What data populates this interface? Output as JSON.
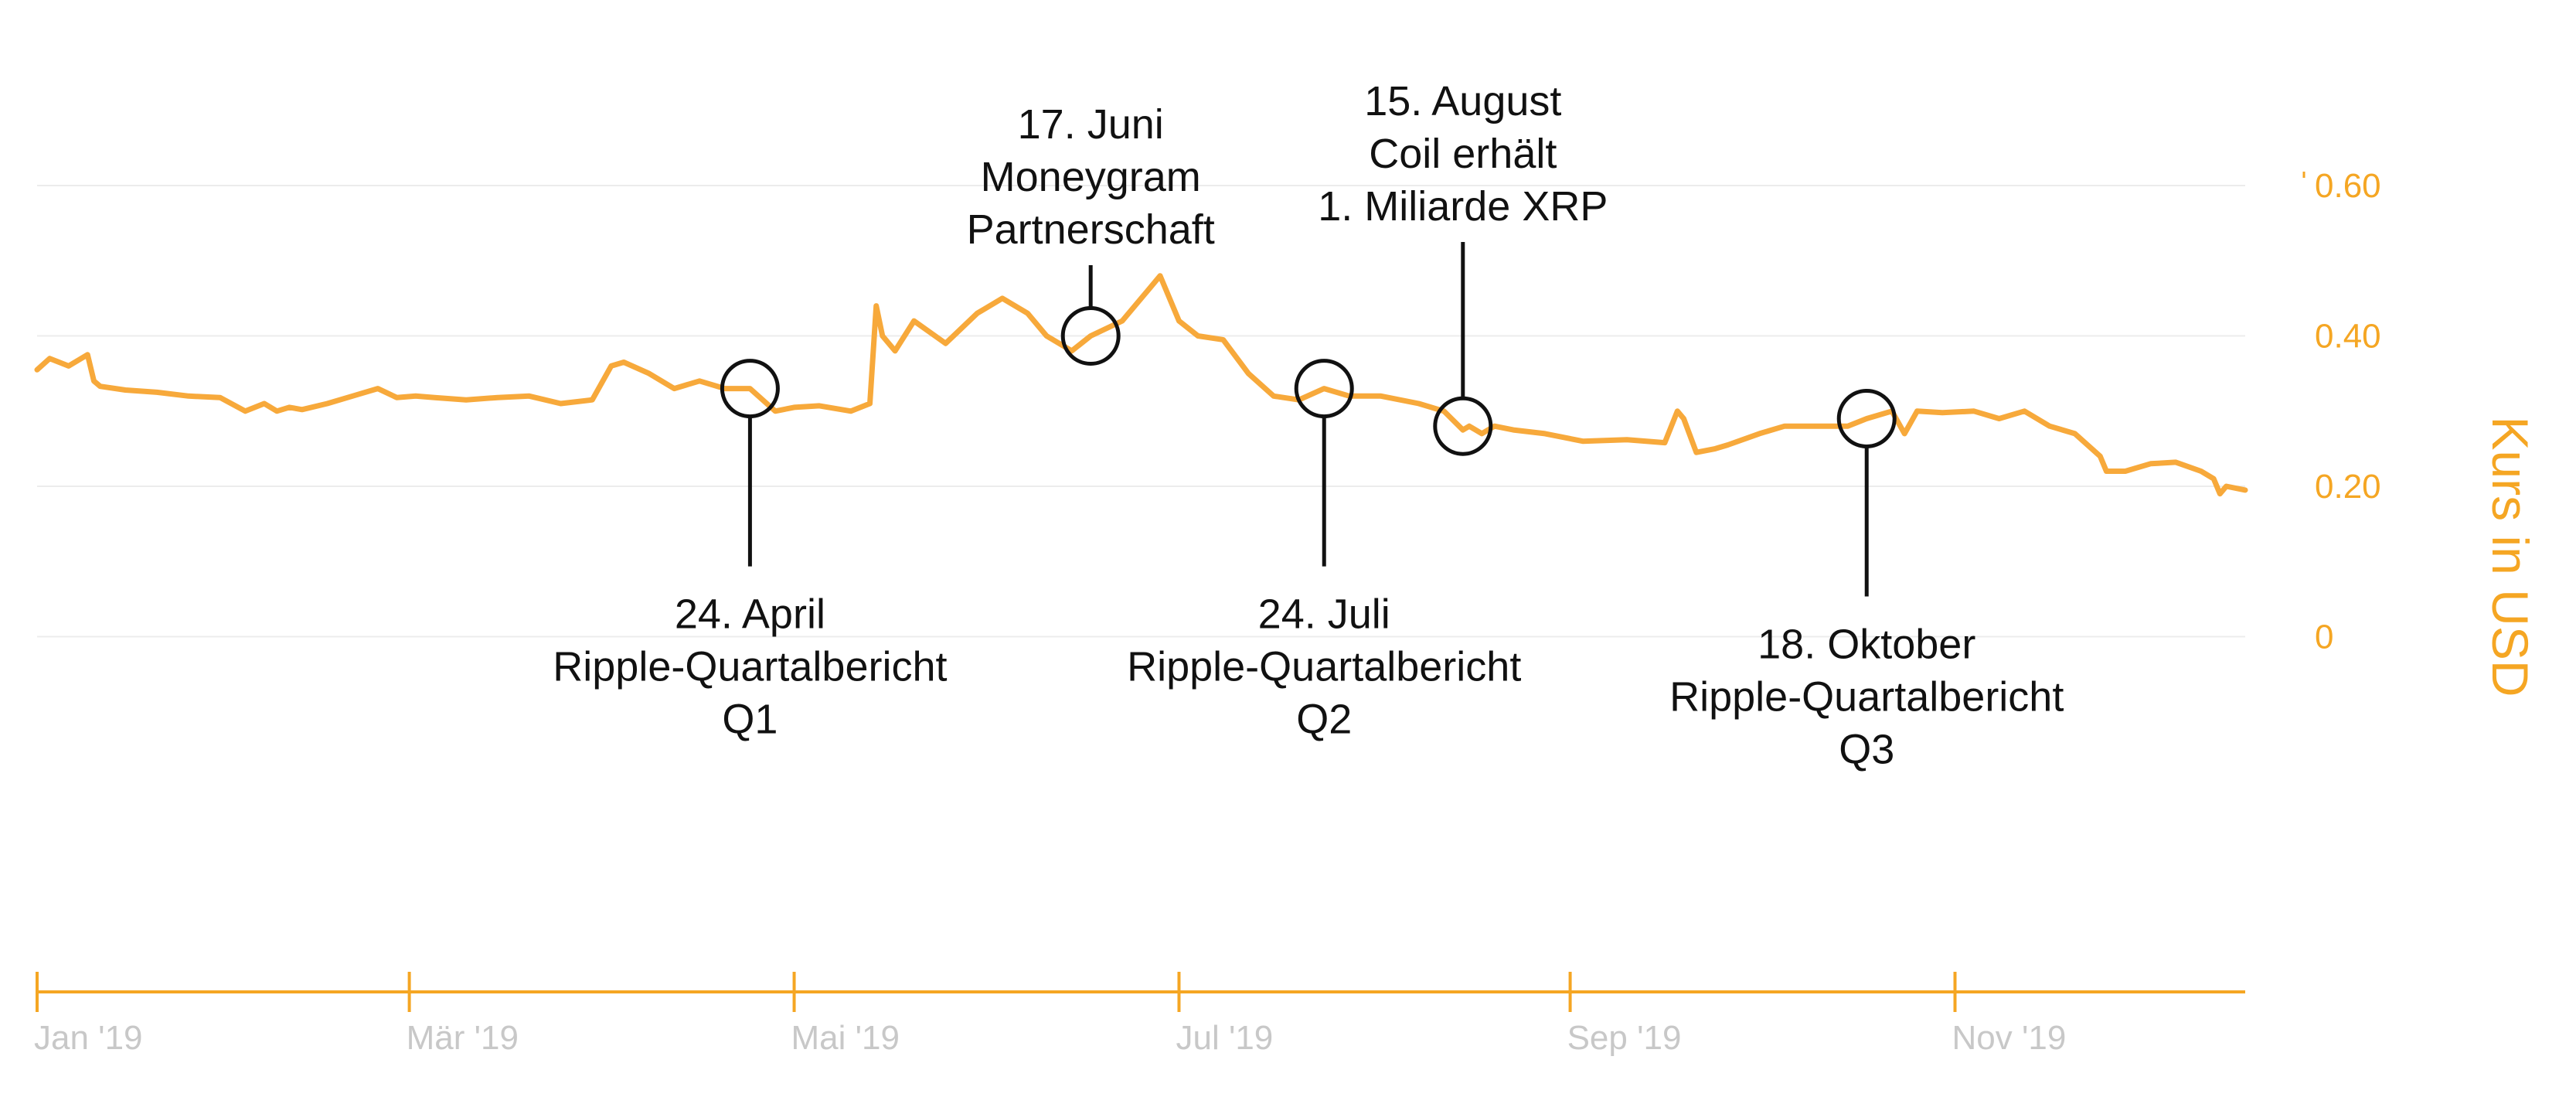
{
  "chart_data": {
    "type": "line",
    "title": "",
    "xlabel": "",
    "ylabel": "Kurs in USD",
    "ylim": [
      -0.2,
      0.6
    ],
    "y_ticks": [
      {
        "value": 0.6,
        "label": "0.60"
      },
      {
        "value": 0.4,
        "label": "0.40"
      },
      {
        "value": 0.2,
        "label": "0.20"
      },
      {
        "value": 0,
        "label": "0"
      }
    ],
    "x_ticks": [
      {
        "date": "2019-01-01",
        "label": "Jan '19"
      },
      {
        "date": "2019-03-01",
        "label": "Mär '19"
      },
      {
        "date": "2019-05-01",
        "label": "Mai '19"
      },
      {
        "date": "2019-07-01",
        "label": "Jul '19"
      },
      {
        "date": "2019-09-01",
        "label": "Sep '19"
      },
      {
        "date": "2019-11-01",
        "label": "Nov '19"
      }
    ],
    "xlim": [
      "2019-01-01",
      "2019-12-17"
    ],
    "grid": true,
    "line_color": "#f7a93b",
    "axis_color": "#f5a623",
    "series": [
      {
        "name": "",
        "x": [
          "2019-01-01",
          "2019-01-03",
          "2019-01-06",
          "2019-01-09",
          "2019-01-10",
          "2019-01-11",
          "2019-01-15",
          "2019-01-20",
          "2019-01-25",
          "2019-01-30",
          "2019-02-03",
          "2019-02-06",
          "2019-02-08",
          "2019-02-10",
          "2019-02-12",
          "2019-02-16",
          "2019-02-20",
          "2019-02-24",
          "2019-02-27",
          "2019-03-02",
          "2019-03-05",
          "2019-03-10",
          "2019-03-15",
          "2019-03-20",
          "2019-03-25",
          "2019-03-30",
          "2019-04-02",
          "2019-04-04",
          "2019-04-08",
          "2019-04-12",
          "2019-04-16",
          "2019-04-20",
          "2019-04-24",
          "2019-04-28",
          "2019-05-01",
          "2019-05-05",
          "2019-05-10",
          "2019-05-13",
          "2019-05-14",
          "2019-05-15",
          "2019-05-17",
          "2019-05-20",
          "2019-05-25",
          "2019-05-30",
          "2019-06-03",
          "2019-06-07",
          "2019-06-10",
          "2019-06-14",
          "2019-06-17",
          "2019-06-22",
          "2019-06-26",
          "2019-06-28",
          "2019-07-01",
          "2019-07-04",
          "2019-07-08",
          "2019-07-12",
          "2019-07-16",
          "2019-07-20",
          "2019-07-24",
          "2019-07-28",
          "2019-08-02",
          "2019-08-08",
          "2019-08-12",
          "2019-08-15",
          "2019-08-16",
          "2019-08-18",
          "2019-08-20",
          "2019-08-23",
          "2019-08-28",
          "2019-09-03",
          "2019-09-10",
          "2019-09-16",
          "2019-09-18",
          "2019-09-19",
          "2019-09-21",
          "2019-09-24",
          "2019-09-26",
          "2019-10-01",
          "2019-10-05",
          "2019-10-10",
          "2019-10-15",
          "2019-10-18",
          "2019-10-22",
          "2019-10-24",
          "2019-10-26",
          "2019-10-30",
          "2019-11-04",
          "2019-11-08",
          "2019-11-12",
          "2019-11-16",
          "2019-11-20",
          "2019-11-24",
          "2019-11-25",
          "2019-11-28",
          "2019-12-02",
          "2019-12-06",
          "2019-12-10",
          "2019-12-12",
          "2019-12-13",
          "2019-12-14",
          "2019-12-17"
        ],
        "values": [
          0.355,
          0.37,
          0.36,
          0.375,
          0.34,
          0.333,
          0.328,
          0.325,
          0.32,
          0.318,
          0.3,
          0.31,
          0.3,
          0.305,
          0.302,
          0.31,
          0.32,
          0.33,
          0.318,
          0.32,
          0.318,
          0.315,
          0.318,
          0.32,
          0.31,
          0.315,
          0.36,
          0.365,
          0.35,
          0.33,
          0.34,
          0.33,
          0.33,
          0.3,
          0.305,
          0.307,
          0.3,
          0.31,
          0.44,
          0.4,
          0.38,
          0.42,
          0.39,
          0.43,
          0.45,
          0.43,
          0.4,
          0.38,
          0.4,
          0.42,
          0.46,
          0.48,
          0.42,
          0.4,
          0.395,
          0.35,
          0.32,
          0.315,
          0.33,
          0.32,
          0.32,
          0.31,
          0.3,
          0.275,
          0.28,
          0.27,
          0.28,
          0.275,
          0.27,
          0.26,
          0.262,
          0.258,
          0.3,
          0.29,
          0.245,
          0.25,
          0.255,
          0.27,
          0.28,
          0.28,
          0.28,
          0.29,
          0.3,
          0.27,
          0.3,
          0.298,
          0.3,
          0.29,
          0.3,
          0.28,
          0.27,
          0.24,
          0.22,
          0.22,
          0.23,
          0.232,
          0.22,
          0.21,
          0.19,
          0.2,
          0.195
        ]
      }
    ],
    "annotations": [
      {
        "date": "2019-04-24",
        "value": 0.33,
        "lines": [
          "24. April",
          "Ripple-Quartalbericht",
          "Q1"
        ],
        "position": "below"
      },
      {
        "date": "2019-06-17",
        "value": 0.4,
        "lines": [
          "17. Juni",
          "Moneygram",
          "Partnerschaft"
        ],
        "position": "above"
      },
      {
        "date": "2019-07-24",
        "value": 0.33,
        "lines": [
          "24. Juli",
          "Ripple-Quartalbericht",
          "Q2"
        ],
        "position": "below"
      },
      {
        "date": "2019-08-15",
        "value": 0.28,
        "lines": [
          "15. August",
          "Coil erhält",
          "1. Miliarde XRP"
        ],
        "position": "above"
      },
      {
        "date": "2019-10-18",
        "value": 0.29,
        "lines": [
          "18. Oktober",
          "Ripple-Quartalbericht",
          "Q3"
        ],
        "position": "below"
      }
    ]
  }
}
